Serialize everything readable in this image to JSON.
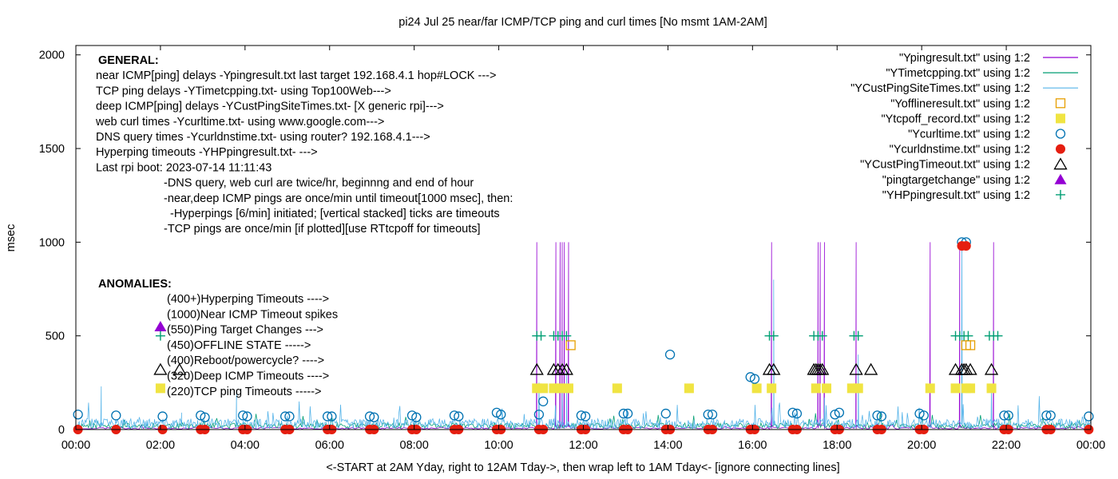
{
  "chart_data": {
    "type": "line",
    "title": "pi24 Jul 25  near/far ICMP/TCP ping and curl times [No msmt 1AM-2AM]",
    "xlabel": "<-START at 2AM Yday, right to 12AM Tday->, then wrap left to 1AM Tday<- [ignore connecting lines]",
    "ylabel": "msec",
    "xlim": [
      0,
      24
    ],
    "ylim": [
      0,
      2050
    ],
    "x_ticks": [
      0,
      2,
      4,
      6,
      8,
      10,
      12,
      14,
      16,
      18,
      20,
      22,
      24
    ],
    "x_tick_labels": [
      "00:00",
      "02:00",
      "04:00",
      "06:00",
      "08:00",
      "10:00",
      "12:00",
      "14:00",
      "16:00",
      "18:00",
      "20:00",
      "22:00",
      "00:00"
    ],
    "y_ticks": [
      0,
      500,
      1000,
      1500,
      2000
    ],
    "grid": false,
    "legend_position": "top-right",
    "notes": {
      "general": [
        {
          "text": "GENERAL:",
          "bold": true,
          "row": 0,
          "indent": 0
        },
        {
          "text": "near ICMP[ping] delays -Ypingresult.txt last target 192.168.4.1 hop#LOCK --->",
          "row": 1,
          "indent": 0
        },
        {
          "text": "TCP ping delays -YTimetcpping.txt- using Top100Web--->",
          "row": 2,
          "indent": 0
        },
        {
          "text": "deep ICMP[ping] delays -YCustPingSiteTimes.txt- [X generic rpi]--->",
          "row": 3,
          "indent": 0
        },
        {
          "text": "web curl times -Ycurltime.txt- using www.google.com--->",
          "row": 4,
          "indent": 0
        },
        {
          "text": "DNS query times -Ycurldnstime.txt- using router? 192.168.4.1--->",
          "row": 5,
          "indent": 0
        },
        {
          "text": "Hyperping timeouts -YHPpingresult.txt- --->",
          "row": 6,
          "indent": 0
        },
        {
          "text": "Last rpi boot: 2023-07-14 11:11:43",
          "row": 7,
          "indent": 0
        },
        {
          "text": "-DNS query, web curl are twice/hr, beginnng and end of hour",
          "row": 8,
          "indent": 1
        },
        {
          "text": "-near,deep ICMP pings are once/min until timeout[1000 msec], then:",
          "row": 9,
          "indent": 1
        },
        {
          "text": "-Hyperpings [6/min] initiated; [vertical stacked] ticks are timeouts",
          "row": 10,
          "indent": 2
        },
        {
          "text": "-TCP pings are once/min [if plotted][use RTtcpoff for timeouts]",
          "row": 11,
          "indent": 1
        }
      ],
      "anomalies_title": "ANOMALIES:",
      "anomalies": [
        {
          "text": "(400+)Hyperping Timeouts ---->",
          "marker": "none"
        },
        {
          "text": "(1000)Near ICMP Timeout spikes",
          "marker": "none"
        },
        {
          "text": "(550)Ping Target Changes --->",
          "marker": "tri-filled+plus"
        },
        {
          "text": "(450)OFFLINE STATE ----->",
          "marker": "none"
        },
        {
          "text": "(400)Reboot/powercycle? ---->",
          "marker": "none"
        },
        {
          "text": "(320)Deep ICMP Timeouts ---->",
          "marker": "triangle"
        },
        {
          "text": "(220)TCP ping Timeouts ----->",
          "marker": "square-filled"
        }
      ]
    },
    "series": [
      {
        "name": "\"Ypingresult.txt\" using 1:2",
        "style": "line",
        "color": "#9400d3",
        "spikes": [
          [
            10.9,
            1000
          ],
          [
            11.35,
            1000
          ],
          [
            11.45,
            1000
          ],
          [
            11.5,
            1000
          ],
          [
            11.55,
            1000
          ],
          [
            11.65,
            1000
          ],
          [
            16.45,
            1000
          ],
          [
            17.55,
            1000
          ],
          [
            17.6,
            1000
          ],
          [
            17.7,
            1000
          ],
          [
            18.45,
            1000
          ],
          [
            20.2,
            1000
          ],
          [
            20.9,
            1000
          ],
          [
            21.7,
            1000
          ]
        ]
      },
      {
        "name": "\"YTimetcpping.txt\" using 1:2",
        "style": "line",
        "color": "#009e73"
      },
      {
        "name": "\"YCustPingSiteTimes.txt\" using 1:2",
        "style": "line",
        "color": "#56b4e9",
        "spikes": [
          [
            0.6,
            230
          ],
          [
            2.5,
            90
          ],
          [
            3.8,
            200
          ],
          [
            10.95,
            250
          ],
          [
            11.5,
            200
          ],
          [
            11.6,
            310
          ],
          [
            16.5,
            800
          ],
          [
            17.7,
            170
          ],
          [
            18.5,
            400
          ],
          [
            20.95,
            1000
          ],
          [
            21.65,
            200
          ]
        ]
      },
      {
        "name": "\"Yofflineresult.txt\" using 1:2",
        "style": "points",
        "marker": "square",
        "color": "#e69f00",
        "points": [
          [
            11.7,
            450
          ],
          [
            21.05,
            450
          ],
          [
            21.15,
            450
          ]
        ]
      },
      {
        "name": "\"Ytcpoff_record.txt\" using 1:2",
        "style": "points",
        "marker": "square-filled",
        "color": "#f0e442",
        "points": [
          [
            2.0,
            220
          ],
          [
            10.9,
            220
          ],
          [
            11.05,
            220
          ],
          [
            11.3,
            220
          ],
          [
            11.45,
            220
          ],
          [
            11.65,
            220
          ],
          [
            12.8,
            220
          ],
          [
            14.5,
            220
          ],
          [
            16.1,
            220
          ],
          [
            16.45,
            220
          ],
          [
            17.5,
            220
          ],
          [
            17.75,
            220
          ],
          [
            18.35,
            220
          ],
          [
            18.5,
            220
          ],
          [
            20.2,
            220
          ],
          [
            20.8,
            220
          ],
          [
            21.05,
            220
          ],
          [
            21.15,
            220
          ],
          [
            21.65,
            220
          ]
        ]
      },
      {
        "name": "\"Ycurltime.txt\" using 1:2",
        "style": "points",
        "marker": "circle",
        "color": "#0072b2",
        "points": [
          [
            0.05,
            80
          ],
          [
            0.95,
            75
          ],
          [
            2.05,
            70
          ],
          [
            2.95,
            75
          ],
          [
            3.05,
            65
          ],
          [
            3.95,
            75
          ],
          [
            4.05,
            70
          ],
          [
            4.95,
            70
          ],
          [
            5.05,
            70
          ],
          [
            5.95,
            70
          ],
          [
            6.05,
            70
          ],
          [
            6.95,
            70
          ],
          [
            7.05,
            65
          ],
          [
            7.95,
            75
          ],
          [
            8.05,
            65
          ],
          [
            8.95,
            75
          ],
          [
            9.05,
            70
          ],
          [
            9.95,
            90
          ],
          [
            10.05,
            80
          ],
          [
            10.95,
            80
          ],
          [
            11.05,
            150
          ],
          [
            11.95,
            75
          ],
          [
            12.05,
            70
          ],
          [
            12.95,
            85
          ],
          [
            13.05,
            85
          ],
          [
            13.95,
            85
          ],
          [
            14.05,
            400
          ],
          [
            14.95,
            80
          ],
          [
            15.05,
            80
          ],
          [
            15.95,
            280
          ],
          [
            16.05,
            270
          ],
          [
            16.95,
            90
          ],
          [
            17.05,
            85
          ],
          [
            17.95,
            80
          ],
          [
            18.05,
            90
          ],
          [
            18.95,
            75
          ],
          [
            19.05,
            70
          ],
          [
            19.95,
            85
          ],
          [
            20.05,
            75
          ],
          [
            20.95,
            1000
          ],
          [
            21.05,
            1000
          ],
          [
            21.95,
            75
          ],
          [
            22.05,
            75
          ],
          [
            22.95,
            75
          ],
          [
            23.05,
            75
          ],
          [
            23.95,
            70
          ]
        ]
      },
      {
        "name": "\"Ycurldnstime.txt\" using 1:2",
        "style": "points",
        "marker": "circle-filled",
        "color": "#e51e10",
        "points": [
          [
            0.05,
            0
          ],
          [
            0.95,
            0
          ],
          [
            2.05,
            0
          ],
          [
            2.95,
            0
          ],
          [
            3.05,
            0
          ],
          [
            3.95,
            0
          ],
          [
            4.05,
            0
          ],
          [
            4.95,
            0
          ],
          [
            5.05,
            0
          ],
          [
            5.95,
            0
          ],
          [
            6.05,
            0
          ],
          [
            6.95,
            0
          ],
          [
            7.05,
            0
          ],
          [
            7.95,
            0
          ],
          [
            8.05,
            0
          ],
          [
            8.95,
            0
          ],
          [
            9.05,
            0
          ],
          [
            9.95,
            0
          ],
          [
            10.05,
            0
          ],
          [
            10.95,
            0
          ],
          [
            11.05,
            0
          ],
          [
            11.95,
            0
          ],
          [
            12.05,
            0
          ],
          [
            12.95,
            0
          ],
          [
            13.05,
            0
          ],
          [
            13.95,
            0
          ],
          [
            14.05,
            0
          ],
          [
            14.95,
            0
          ],
          [
            15.05,
            0
          ],
          [
            15.95,
            0
          ],
          [
            16.05,
            0
          ],
          [
            16.95,
            0
          ],
          [
            17.05,
            0
          ],
          [
            17.95,
            0
          ],
          [
            18.05,
            0
          ],
          [
            18.95,
            0
          ],
          [
            19.05,
            0
          ],
          [
            19.95,
            0
          ],
          [
            20.05,
            0
          ],
          [
            20.95,
            980
          ],
          [
            21.05,
            980
          ],
          [
            21.95,
            0
          ],
          [
            22.05,
            0
          ],
          [
            22.95,
            0
          ],
          [
            23.05,
            0
          ],
          [
            23.95,
            0
          ]
        ]
      },
      {
        "name": "\"YCustPingTimeout.txt\" using 1:2",
        "style": "points",
        "marker": "triangle",
        "color": "#000000",
        "points": [
          [
            2.0,
            320
          ],
          [
            2.45,
            320
          ],
          [
            10.9,
            320
          ],
          [
            11.3,
            320
          ],
          [
            11.4,
            320
          ],
          [
            11.5,
            320
          ],
          [
            11.6,
            320
          ],
          [
            16.4,
            320
          ],
          [
            16.5,
            320
          ],
          [
            17.45,
            320
          ],
          [
            17.5,
            320
          ],
          [
            17.55,
            320
          ],
          [
            17.6,
            320
          ],
          [
            17.65,
            320
          ],
          [
            18.45,
            320
          ],
          [
            18.8,
            320
          ],
          [
            20.8,
            320
          ],
          [
            20.95,
            320
          ],
          [
            21.0,
            320
          ],
          [
            21.05,
            320
          ],
          [
            21.15,
            320
          ],
          [
            21.65,
            320
          ]
        ]
      },
      {
        "name": "\"pingtargetchange\" using 1:2",
        "style": "points",
        "marker": "triangle-filled",
        "color": "#9400d3",
        "points": [
          [
            2.0,
            550
          ]
        ]
      },
      {
        "name": "\"YHPpingresult.txt\" using 1:2",
        "style": "points",
        "marker": "plus",
        "color": "#009e73",
        "points": [
          [
            2.0,
            500
          ],
          [
            10.9,
            500
          ],
          [
            11.0,
            500
          ],
          [
            11.3,
            500
          ],
          [
            11.4,
            500
          ],
          [
            11.5,
            500
          ],
          [
            11.6,
            500
          ],
          [
            16.4,
            500
          ],
          [
            16.5,
            500
          ],
          [
            17.45,
            500
          ],
          [
            17.55,
            500
          ],
          [
            17.65,
            500
          ],
          [
            18.4,
            500
          ],
          [
            18.5,
            500
          ],
          [
            20.8,
            500
          ],
          [
            20.9,
            500
          ],
          [
            21.0,
            500
          ],
          [
            21.1,
            500
          ],
          [
            21.6,
            500
          ],
          [
            21.7,
            500
          ],
          [
            21.8,
            500
          ]
        ]
      }
    ]
  }
}
